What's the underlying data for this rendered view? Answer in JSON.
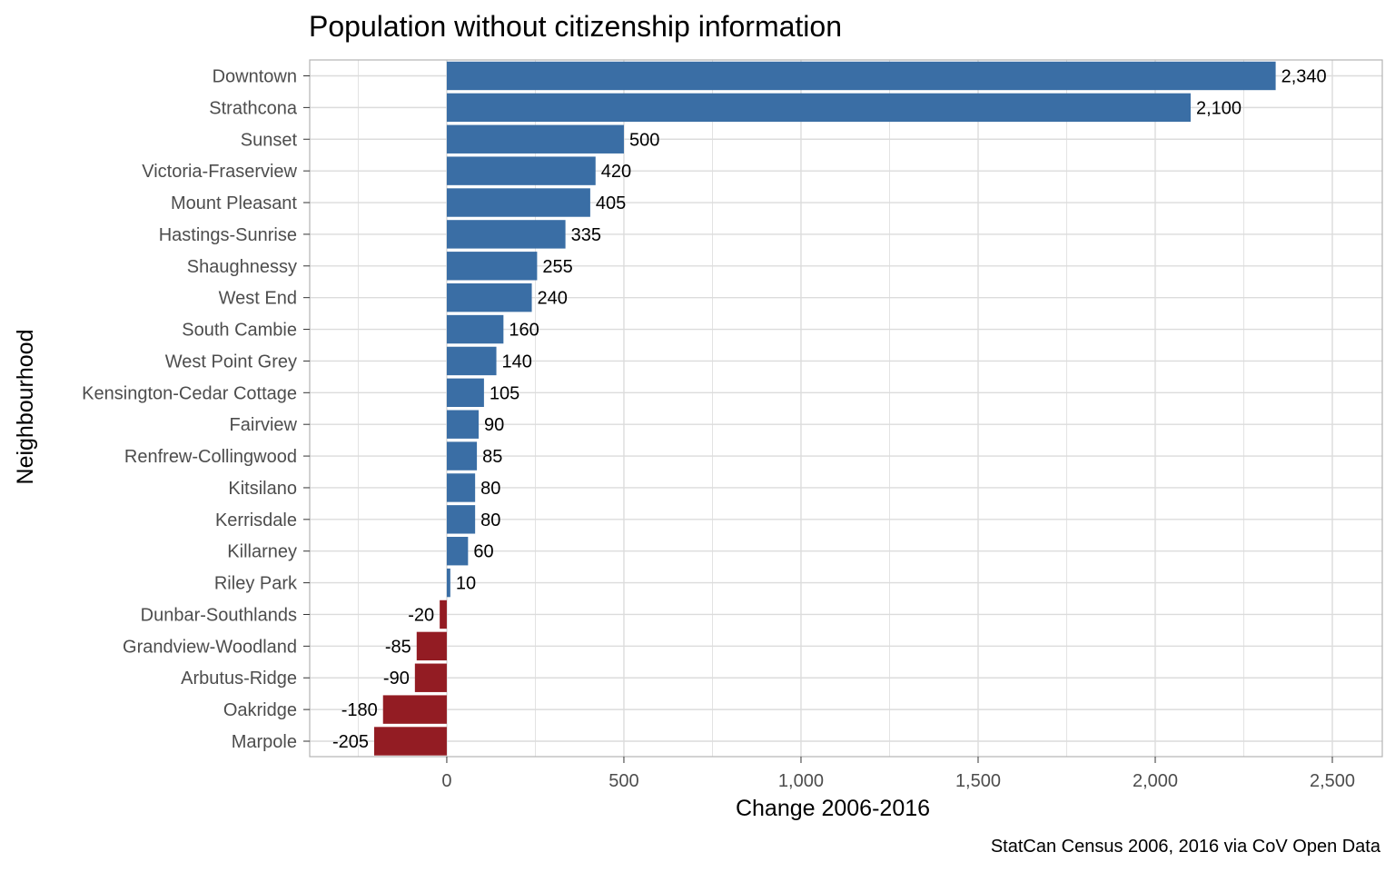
{
  "chart_data": {
    "type": "bar",
    "orientation": "horizontal",
    "title": "Population without citizenship information",
    "xlabel": "Change 2006-2016",
    "ylabel": "Neighbourhood",
    "caption": "StatCan Census 2006, 2016 via CoV Open Data",
    "xlim": [
      -387,
      2641
    ],
    "xticks": [
      0,
      500,
      1000,
      1500,
      2000,
      2500
    ],
    "xtick_labels": [
      "0",
      "500",
      "1,000",
      "1,500",
      "2,000",
      "2,500"
    ],
    "grid": true,
    "colors": {
      "positive": "#3a6ea5",
      "negative": "#931c23",
      "grid": "#dcdcdc",
      "panel_border": "#b3b3b3"
    },
    "categories": [
      "Downtown",
      "Strathcona",
      "Sunset",
      "Victoria-Fraserview",
      "Mount Pleasant",
      "Hastings-Sunrise",
      "Shaughnessy",
      "West End",
      "South Cambie",
      "West Point Grey",
      "Kensington-Cedar Cottage",
      "Fairview",
      "Renfrew-Collingwood",
      "Kitsilano",
      "Kerrisdale",
      "Killarney",
      "Riley Park",
      "Dunbar-Southlands",
      "Grandview-Woodland",
      "Arbutus-Ridge",
      "Oakridge",
      "Marpole"
    ],
    "values": [
      2340,
      2100,
      500,
      420,
      405,
      335,
      255,
      240,
      160,
      140,
      105,
      90,
      85,
      80,
      80,
      60,
      10,
      -20,
      -85,
      -90,
      -180,
      -205
    ],
    "value_labels": [
      "2,340",
      "2,100",
      "500",
      "420",
      "405",
      "335",
      "255",
      "240",
      "160",
      "140",
      "105",
      "90",
      "85",
      "80",
      "80",
      "60",
      "10",
      "-20",
      "-85",
      "-90",
      "-180",
      "-205"
    ]
  }
}
